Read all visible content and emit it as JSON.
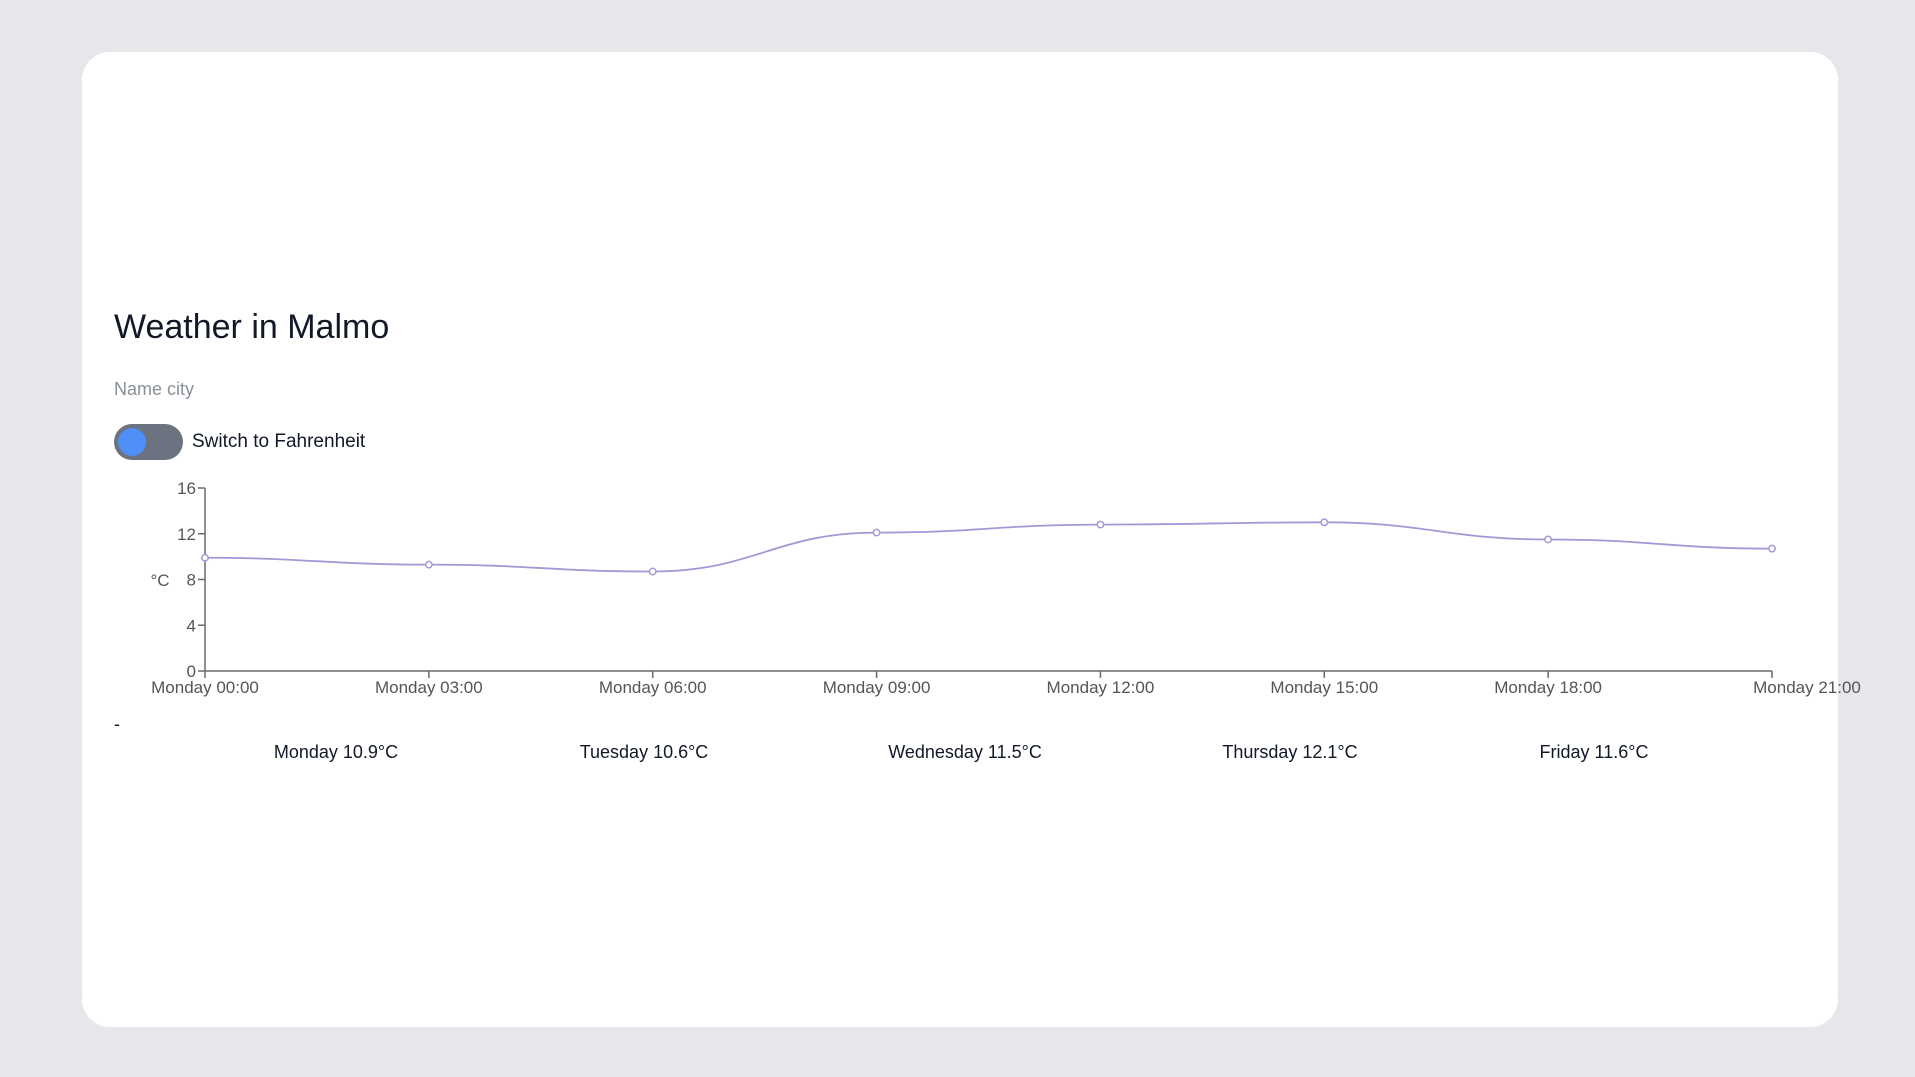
{
  "header": {
    "title": "Weather in Malmo"
  },
  "search": {
    "placeholder": "Name city",
    "value": ""
  },
  "unit_toggle": {
    "label": "Switch to Fahrenheit",
    "checked": false,
    "knob_color": "#4f8ff7",
    "track_color": "#6b7280"
  },
  "chart_data": {
    "type": "line",
    "x": [
      "Monday 00:00",
      "Monday 03:00",
      "Monday 06:00",
      "Monday 09:00",
      "Monday 12:00",
      "Monday 15:00",
      "Monday 18:00",
      "Monday 21:00"
    ],
    "series": [
      {
        "values": [
          9.9,
          9.3,
          8.7,
          12.1,
          12.8,
          13.0,
          11.5,
          10.7
        ],
        "color": "#a399d6"
      }
    ],
    "ylabel": "°C",
    "ylim": [
      0,
      16
    ],
    "yticks": [
      0,
      4,
      8,
      12,
      16
    ],
    "grid": false
  },
  "separator": "-",
  "forecast": {
    "days": [
      {
        "label": "Monday 10.9°C"
      },
      {
        "label": "Tuesday 10.6°C"
      },
      {
        "label": "Wednesday 11.5°C"
      },
      {
        "label": "Thursday 12.1°C"
      },
      {
        "label": "Friday 11.6°C"
      }
    ]
  }
}
